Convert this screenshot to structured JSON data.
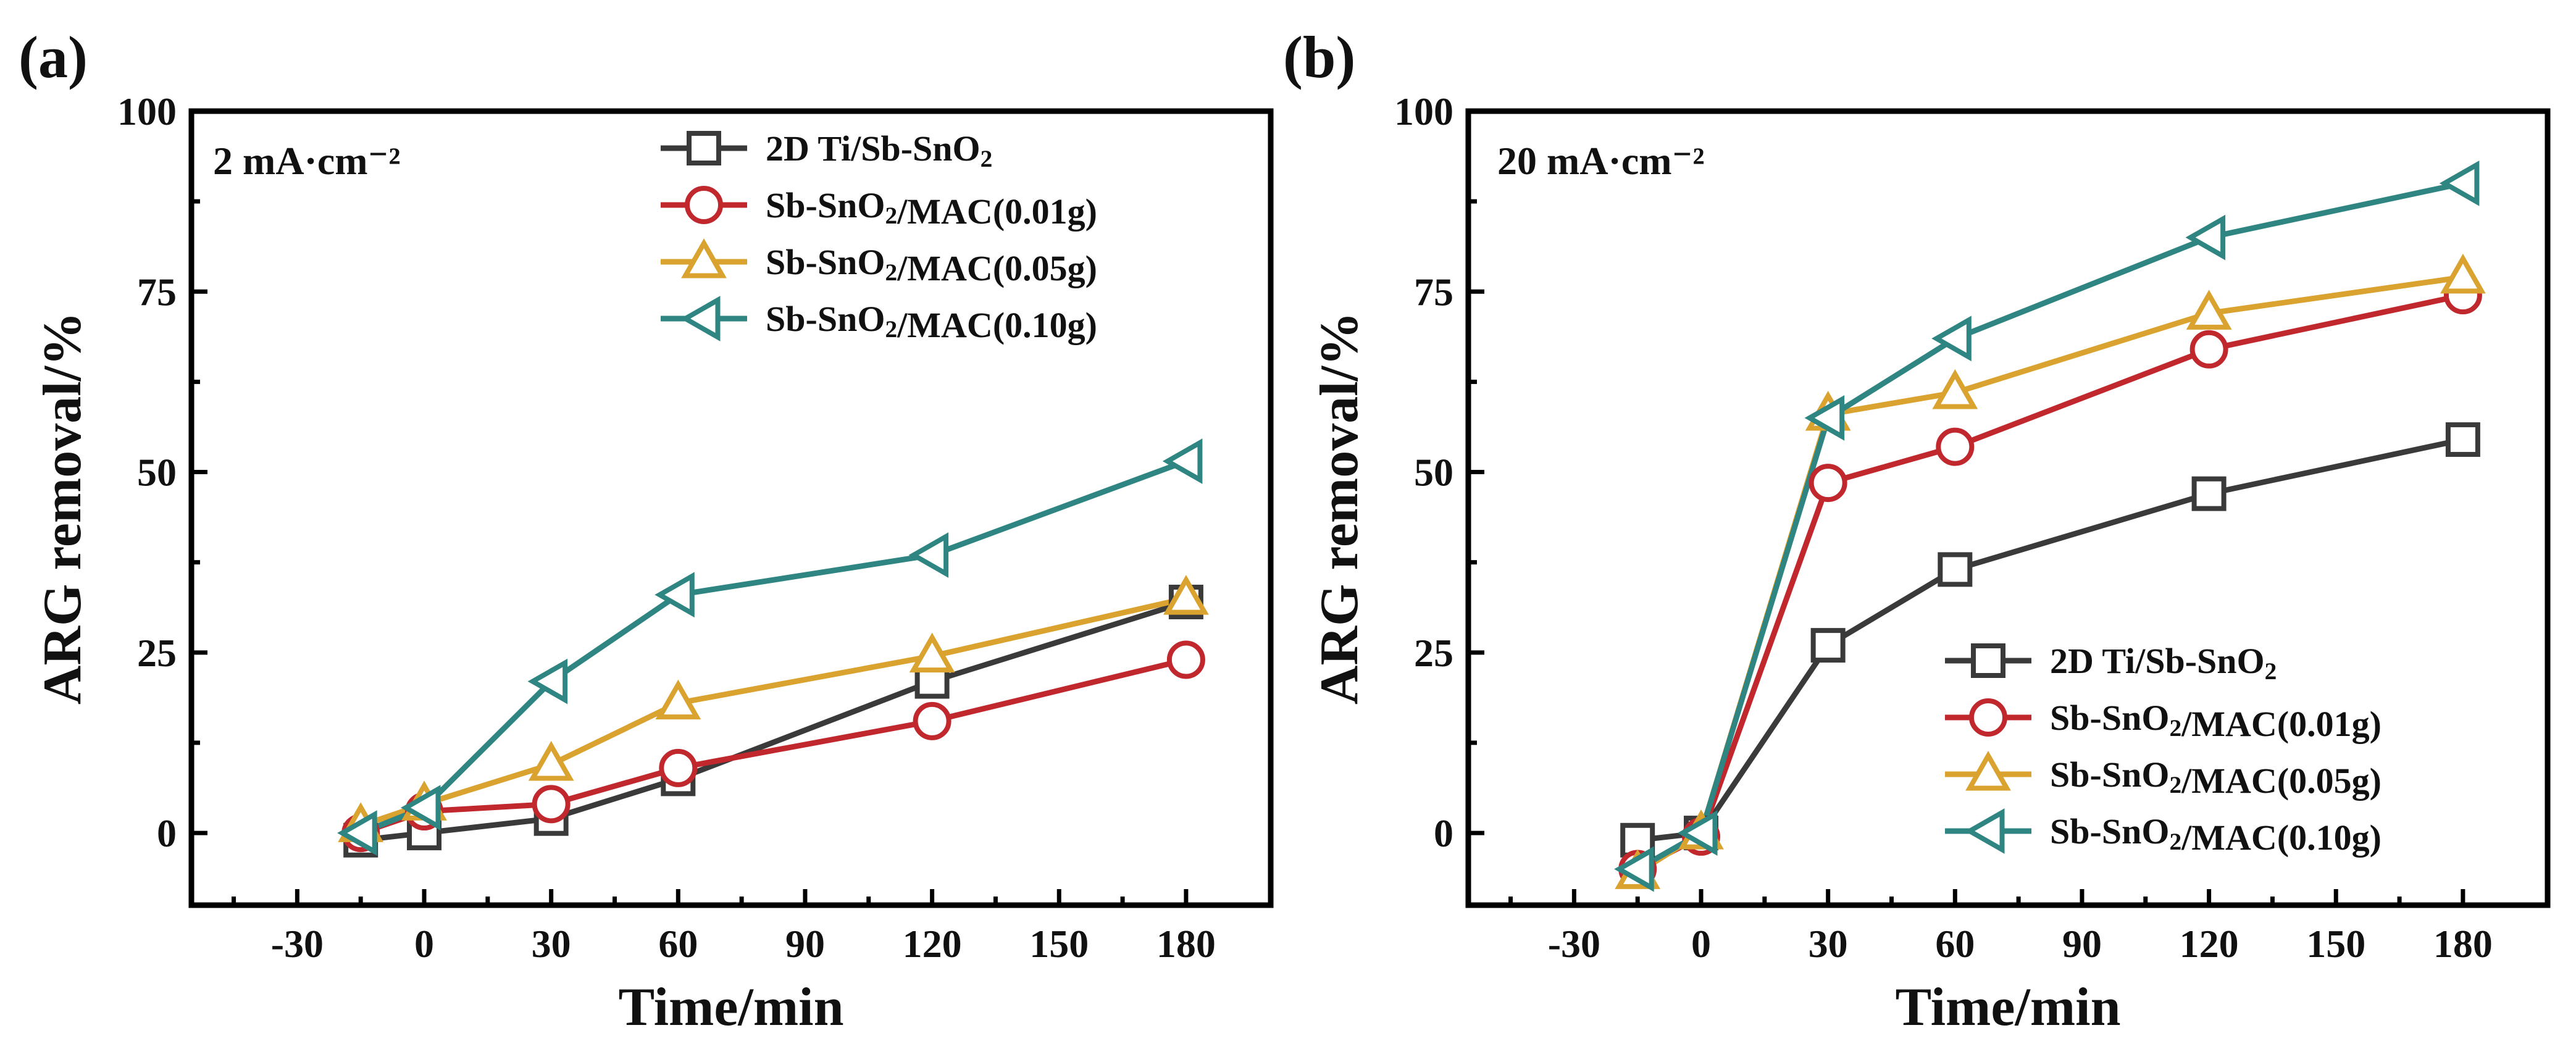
{
  "figure": {
    "x_ticks": [
      "-30",
      "0",
      "30",
      "60",
      "90",
      "120",
      "150",
      "180"
    ],
    "y_ticks": [
      "0",
      "25",
      "50",
      "75",
      "100"
    ]
  },
  "chart_data": [
    {
      "type": "line",
      "panel_label": "(a)",
      "annotation": "2 mA·cm⁻²",
      "xlabel": "Time/min",
      "ylabel": "ARG removal/%",
      "xlim": [
        -55,
        200
      ],
      "ylim": [
        -10,
        100
      ],
      "legend_position": "top-right",
      "series": [
        {
          "name": "2D Ti/Sb-SnO₂",
          "color": "#3a3a3a",
          "marker": "square",
          "x": [
            -15,
            0,
            30,
            60,
            120,
            180
          ],
          "y": [
            -1,
            0,
            2,
            7.5,
            21,
            32
          ]
        },
        {
          "name": "Sb-SnO₂/MAC(0.01g)",
          "color": "#c0282d",
          "marker": "circle",
          "x": [
            -15,
            0,
            30,
            60,
            120,
            180
          ],
          "y": [
            0,
            3,
            4,
            9,
            15.5,
            24
          ]
        },
        {
          "name": "Sb-SnO₂/MAC(0.05g)",
          "color": "#daa22e",
          "marker": "triangle-up",
          "x": [
            -15,
            0,
            30,
            60,
            120,
            180
          ],
          "y": [
            1,
            4,
            9.5,
            18,
            24.5,
            32.5
          ]
        },
        {
          "name": "Sb-SnO₂/MAC(0.10g)",
          "color": "#2e8582",
          "marker": "triangle-left",
          "x": [
            -15,
            0,
            30,
            60,
            120,
            180
          ],
          "y": [
            0,
            3.5,
            21,
            33,
            38.5,
            51.5
          ]
        }
      ]
    },
    {
      "type": "line",
      "panel_label": "(b)",
      "annotation": "20 mA·cm⁻²",
      "xlabel": "Time/min",
      "ylabel": "ARG removal/%",
      "xlim": [
        -55,
        200
      ],
      "ylim": [
        -10,
        100
      ],
      "legend_position": "bottom-right",
      "series": [
        {
          "name": "2D Ti/Sb-SnO₂",
          "color": "#3a3a3a",
          "marker": "square",
          "x": [
            -15,
            0,
            30,
            60,
            120,
            180
          ],
          "y": [
            -1,
            0,
            26,
            36.5,
            47,
            54.5
          ]
        },
        {
          "name": "Sb-SnO₂/MAC(0.01g)",
          "color": "#c0282d",
          "marker": "circle",
          "x": [
            -15,
            0,
            30,
            60,
            120,
            180
          ],
          "y": [
            -5,
            -0.5,
            48.5,
            53.5,
            67,
            74.5
          ]
        },
        {
          "name": "Sb-SnO₂/MAC(0.05g)",
          "color": "#daa22e",
          "marker": "triangle-up",
          "x": [
            -15,
            0,
            30,
            60,
            120,
            180
          ],
          "y": [
            -5.5,
            0,
            58,
            61,
            72,
            77
          ]
        },
        {
          "name": "Sb-SnO₂/MAC(0.10g)",
          "color": "#2e8582",
          "marker": "triangle-left",
          "x": [
            -15,
            0,
            30,
            60,
            120,
            180
          ],
          "y": [
            -5,
            0,
            57.5,
            68.5,
            82.5,
            90
          ]
        }
      ]
    }
  ]
}
